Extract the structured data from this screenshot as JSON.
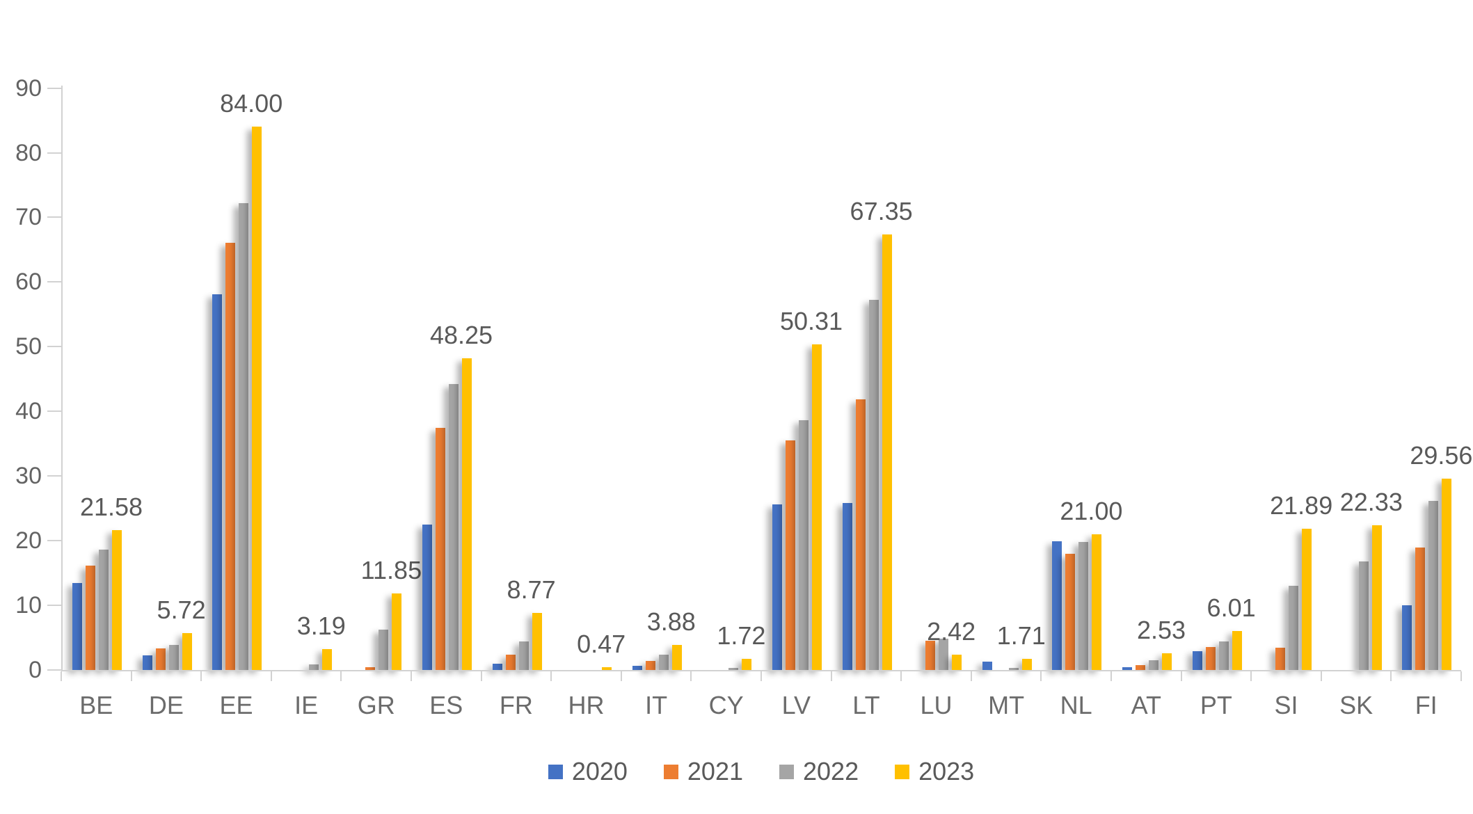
{
  "chart_data": {
    "type": "bar",
    "title": "",
    "categories": [
      "BE",
      "DE",
      "EE",
      "IE",
      "GR",
      "ES",
      "FR",
      "HR",
      "IT",
      "CY",
      "LV",
      "LT",
      "LU",
      "MT",
      "NL",
      "AT",
      "PT",
      "SI",
      "SK",
      "FI"
    ],
    "series": [
      {
        "name": "2020",
        "color": "#4472C4",
        "values": [
          13.4,
          2.3,
          58.1,
          0,
          0,
          22.5,
          1.0,
          0,
          0.6,
          0,
          25.6,
          25.8,
          0,
          1.3,
          19.9,
          0.4,
          2.9,
          0,
          0,
          10.0
        ]
      },
      {
        "name": "2021",
        "color": "#ED7D31",
        "values": [
          16.1,
          3.3,
          66.1,
          0,
          0.4,
          37.5,
          2.4,
          0,
          1.4,
          0,
          35.5,
          41.9,
          4.5,
          0,
          18.0,
          0.8,
          3.5,
          3.4,
          0,
          18.9
        ]
      },
      {
        "name": "2022",
        "color": "#A5A5A5",
        "values": [
          18.6,
          3.9,
          72.2,
          0.9,
          6.2,
          44.2,
          4.4,
          0,
          2.4,
          0.3,
          38.6,
          57.2,
          4.8,
          0.3,
          19.8,
          1.5,
          4.4,
          13.0,
          16.8,
          26.2
        ]
      },
      {
        "name": "2023",
        "color": "#FFC000",
        "values": [
          21.58,
          5.72,
          84.0,
          3.19,
          11.85,
          48.25,
          8.77,
          0.47,
          3.88,
          1.72,
          50.31,
          67.35,
          2.42,
          1.71,
          21.0,
          2.53,
          6.01,
          21.89,
          22.33,
          29.56
        ]
      }
    ],
    "data_labels_2023": [
      "21.58",
      "5.72",
      "84.00",
      "3.19",
      "11.85",
      "48.25",
      "8.77",
      "0.47",
      "3.88",
      "1.72",
      "50.31",
      "67.35",
      "2.42",
      "1.71",
      "21.00",
      "2.53",
      "6.01",
      "21.89",
      "22.33",
      "29.56"
    ],
    "ylim": [
      0,
      90
    ],
    "ytick_step": 10,
    "ytick_labels": [
      "0",
      "10",
      "20",
      "30",
      "40",
      "50",
      "60",
      "70",
      "80",
      "90"
    ],
    "grid": false,
    "legend_position": "bottom",
    "legend_entries": [
      "2020",
      "2021",
      "2022",
      "2023"
    ],
    "axis_color": "#d2d2d2",
    "label_color": "#595959"
  }
}
